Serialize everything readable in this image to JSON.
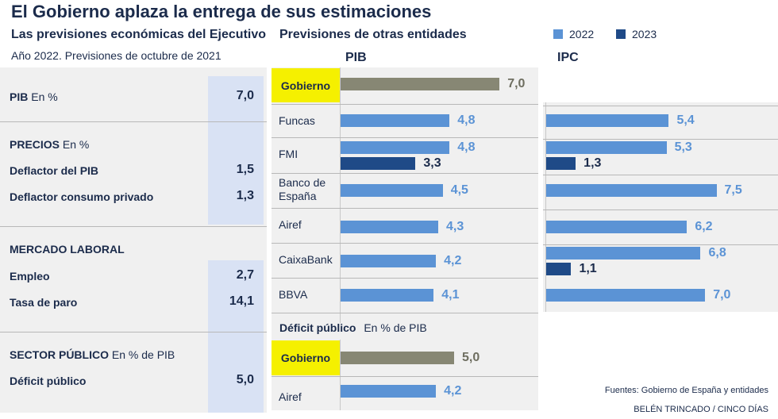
{
  "title": "El Gobierno aplaza la entrega de sus estimaciones",
  "left": {
    "heading": "Las previsiones económicas del Ejecutivo",
    "note": "Año 2022. Previsiones de octubre de 2021",
    "pib": {
      "label": "PIB",
      "unit": "En %",
      "value": "7,0"
    },
    "precios": {
      "label": "PRECIOS",
      "unit": "En %"
    },
    "deflactor_pib": {
      "label": "Deflactor del PIB",
      "value": "1,5"
    },
    "deflactor_consumo": {
      "label": "Deflactor consumo privado",
      "value": "1,3"
    },
    "mercado": {
      "label": "MERCADO LABORAL"
    },
    "empleo": {
      "label": "Empleo",
      "value": "2,7"
    },
    "paro": {
      "label": "Tasa de paro",
      "value": "14,1"
    },
    "sector": {
      "label": "SECTOR PÚBLICO",
      "unit": "En % de PIB"
    },
    "deficit": {
      "label": "Déficit público",
      "value": "5,0"
    }
  },
  "middle": {
    "heading": "Previsiones de otras entidades",
    "deficit_heading": "Déficit público",
    "deficit_unit": "En % de PIB"
  },
  "legend": {
    "y2022": "2022",
    "y2023": "2023"
  },
  "colors": {
    "y2022": "#5b93d5",
    "y2023": "#1f4a87",
    "gobierno": "#878774",
    "highlight": "#f5f000"
  },
  "chart_data": [
    {
      "type": "bar",
      "title": "PIB",
      "categories": [
        "Gobierno",
        "Funcas",
        "FMI",
        "Banco de España",
        "Airef",
        "CaixaBank",
        "BBVA"
      ],
      "display_labels": [
        "Gobierno",
        "Funcas",
        "FMI",
        "Banco de|España",
        "Airef",
        "CaixaBank",
        "BBVA"
      ],
      "series": [
        {
          "name": "2022",
          "values": [
            7.0,
            4.8,
            4.8,
            4.5,
            4.3,
            4.2,
            4.1
          ],
          "labels": [
            "7,0",
            "4,8",
            "4,8",
            "4,5",
            "4,3",
            "4,2",
            "4,1"
          ]
        },
        {
          "name": "2023",
          "values": [
            null,
            null,
            3.3,
            null,
            null,
            null,
            null
          ],
          "labels": [
            null,
            null,
            "3,3",
            null,
            null,
            null,
            null
          ]
        }
      ],
      "xlim": [
        0,
        7.0
      ]
    },
    {
      "type": "bar",
      "title": "IPC",
      "categories": [
        "Gobierno",
        "Funcas",
        "FMI",
        "Banco de España",
        "Airef",
        "CaixaBank",
        "BBVA"
      ],
      "series": [
        {
          "name": "2022",
          "values": [
            null,
            5.4,
            5.3,
            7.5,
            6.2,
            6.8,
            7.0
          ],
          "labels": [
            null,
            "5,4",
            "5,3",
            "7,5",
            "6,2",
            "6,8",
            "7,0"
          ]
        },
        {
          "name": "2023",
          "values": [
            null,
            null,
            1.3,
            null,
            null,
            1.1,
            null
          ],
          "labels": [
            null,
            null,
            "1,3",
            null,
            null,
            "1,1",
            null
          ]
        }
      ],
      "xlim": [
        0,
        7.5
      ]
    },
    {
      "type": "bar",
      "title": "Déficit público",
      "categories": [
        "Gobierno",
        "Airef"
      ],
      "series": [
        {
          "name": "2022",
          "values": [
            5.0,
            4.2
          ],
          "labels": [
            "5,0",
            "4,2"
          ]
        }
      ],
      "xlim": [
        0,
        7.0
      ]
    }
  ],
  "footer": {
    "source": "Fuentes: Gobierno de España y entidades",
    "credit": "BELÉN TRINCADO / CINCO DÍAS"
  }
}
